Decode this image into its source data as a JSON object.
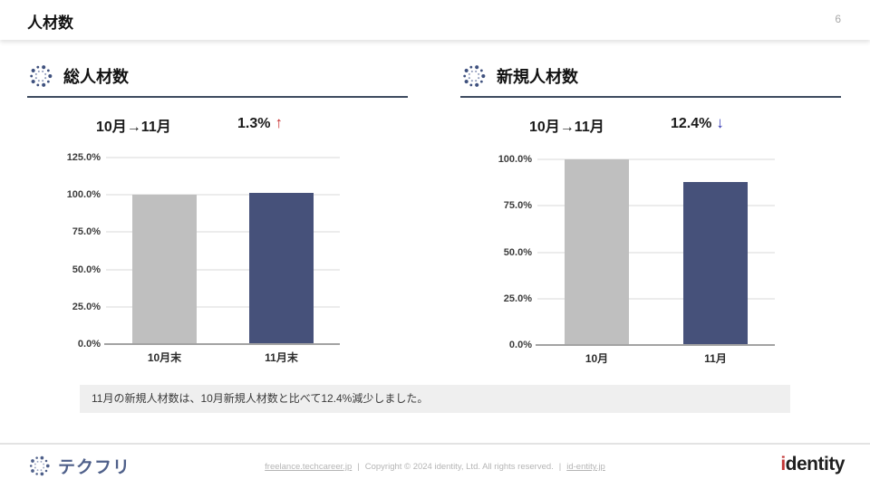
{
  "header": {
    "title": "人材数",
    "page_number": "6"
  },
  "panels": [
    {
      "title": "総人材数",
      "period": "10月→11月",
      "change": "1.3%",
      "arrow": "↑",
      "direction": "up"
    },
    {
      "title": "新規人材数",
      "period": "10月→11月",
      "change": "12.4%",
      "arrow": "↓",
      "direction": "down"
    }
  ],
  "chart_data": [
    {
      "type": "bar",
      "title": "総人材数 10月末→11月末",
      "categories": [
        "10月末",
        "11月末"
      ],
      "values": [
        100.0,
        101.3
      ],
      "xlabel": "",
      "ylabel": "",
      "ylim": [
        0,
        125
      ],
      "yticks": [
        "0.0%",
        "25.0%",
        "50.0%",
        "75.0%",
        "100.0%",
        "125.0%"
      ],
      "bar_colors": [
        "#bfbfbf",
        "#46517a"
      ],
      "grid": true,
      "legend": "none"
    },
    {
      "type": "bar",
      "title": "新規人材数 10月→11月",
      "categories": [
        "10月",
        "11月"
      ],
      "values": [
        100.0,
        87.6
      ],
      "xlabel": "",
      "ylabel": "",
      "ylim": [
        0,
        100
      ],
      "yticks": [
        "0.0%",
        "25.0%",
        "50.0%",
        "75.0%",
        "100.0%"
      ],
      "bar_colors": [
        "#bfbfbf",
        "#46517a"
      ],
      "grid": true,
      "legend": "none"
    }
  ],
  "note": {
    "text": "11月の新規人材数は、10月新規人材数と比べて12.4%減少しました。"
  },
  "footer": {
    "logo_text": "テクフリ",
    "site_link": "freelance.techcareer.jp",
    "copyright": "Copyright © 2024 identity, Ltd. All rights reserved.",
    "company_link": "id-entity.jp",
    "separator": "|",
    "brand_initial": "i",
    "brand_rest": "dentity"
  },
  "colors": {
    "bar_gray": "#bfbfbf",
    "bar_navy": "#46517a",
    "arrow_up_red": "#c62828",
    "arrow_down_blue": "#3236b2",
    "panel_underline": "#3d4a5f",
    "note_bg": "#efefef",
    "logo_blue": "#4f608a",
    "brand_red": "#c13535"
  }
}
